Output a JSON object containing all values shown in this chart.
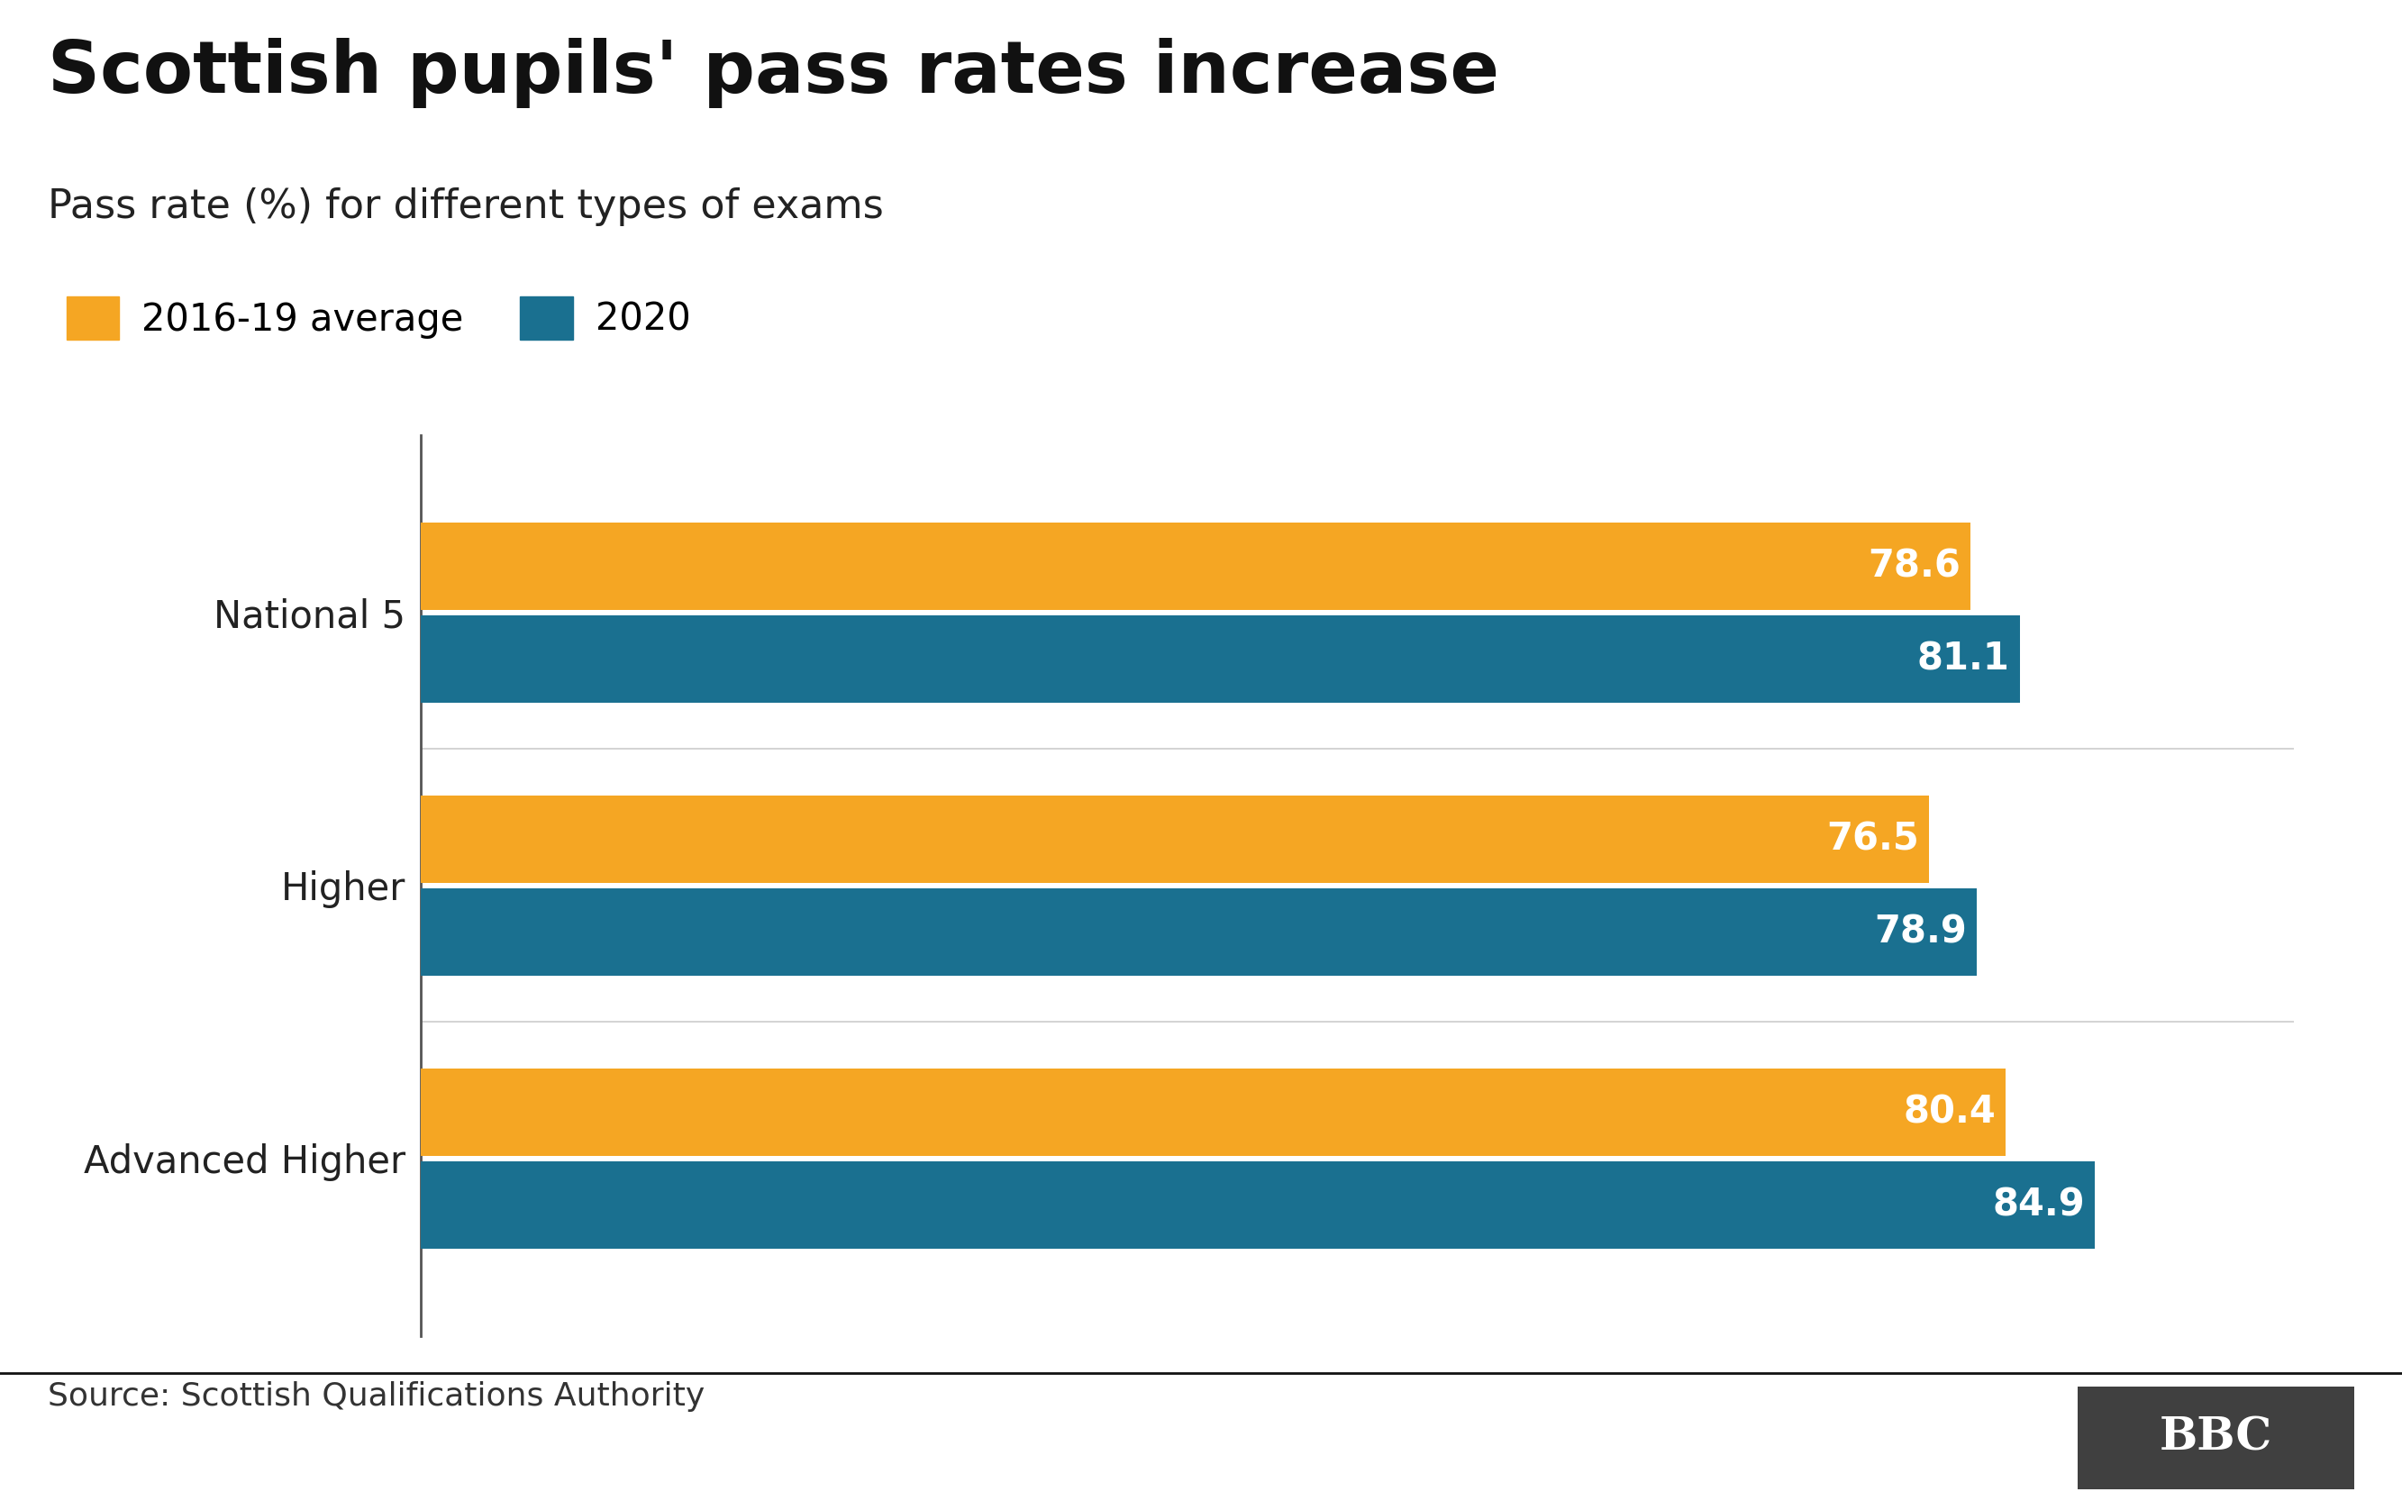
{
  "title": "Scottish pupils' pass rates increase",
  "subtitle": "Pass rate (%) for different types of exams",
  "categories": [
    "National 5",
    "Higher",
    "Advanced Higher"
  ],
  "avg_values": [
    78.6,
    76.5,
    80.4
  ],
  "year_values": [
    81.1,
    78.9,
    84.9
  ],
  "avg_color": "#F5A623",
  "year_color": "#1A7090",
  "legend_labels": [
    "2016-19 average",
    "2020"
  ],
  "bar_label_color": "#FFFFFF",
  "source_text": "Source: Scottish Qualifications Authority",
  "bbc_box_color": "#404040",
  "bbc_text_color": "#FFFFFF",
  "background_color": "#FFFFFF",
  "title_fontsize": 58,
  "subtitle_fontsize": 32,
  "legend_fontsize": 30,
  "bar_label_fontsize": 30,
  "ytick_fontsize": 30,
  "source_fontsize": 26,
  "xlim": [
    0,
    95
  ],
  "bar_height": 0.32,
  "bar_gap": 0.02,
  "separator_color": "#BBBBBB",
  "grid_color": "#CCCCCC",
  "spine_color": "#555555"
}
